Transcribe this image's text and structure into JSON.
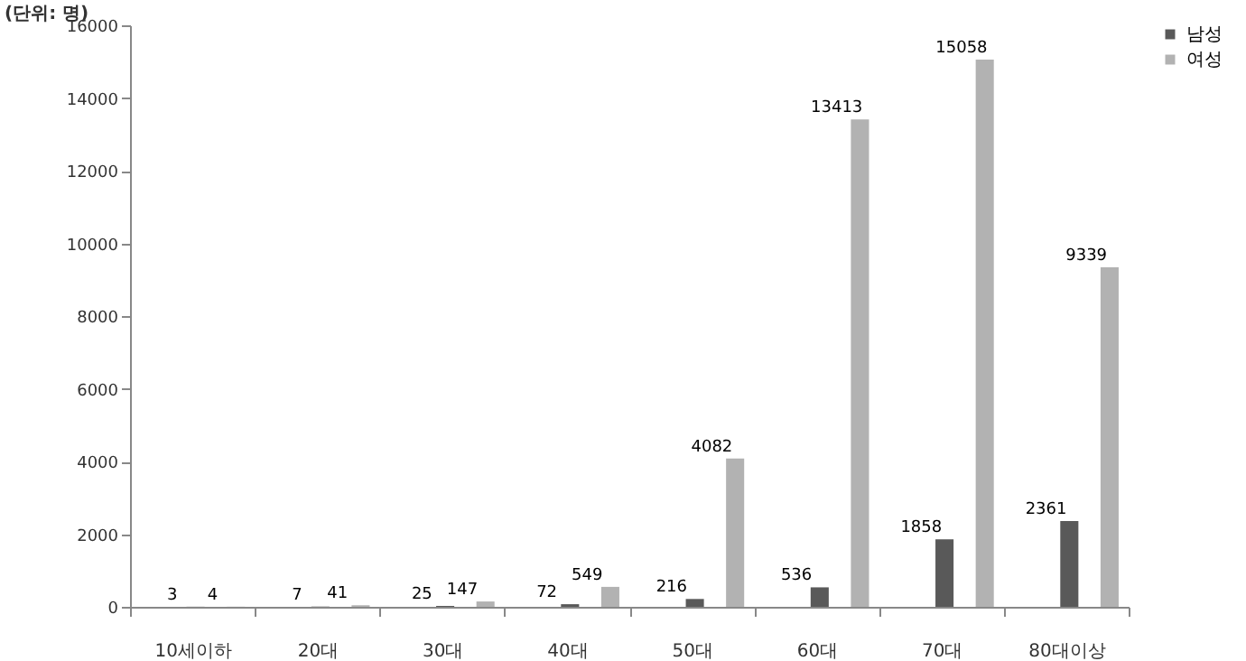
{
  "chart_data": {
    "type": "bar",
    "ylabel": "(단위: 명)",
    "categories": [
      "10세이하",
      "20대",
      "30대",
      "40대",
      "50대",
      "60대",
      "70대",
      "80대이상"
    ],
    "series": [
      {
        "name": "남성",
        "color": "#595959",
        "values": [
          3,
          7,
          25,
          72,
          216,
          536,
          1858,
          2361
        ]
      },
      {
        "name": "여성",
        "color": "#b2b2b2",
        "values": [
          4,
          41,
          147,
          549,
          4082,
          13413,
          15058,
          9339
        ]
      }
    ],
    "ylim": [
      0,
      16000
    ],
    "yticks": [
      0,
      2000,
      4000,
      6000,
      8000,
      10000,
      12000,
      14000,
      16000
    ],
    "grid": false,
    "legend": "right",
    "data_labels": true
  }
}
